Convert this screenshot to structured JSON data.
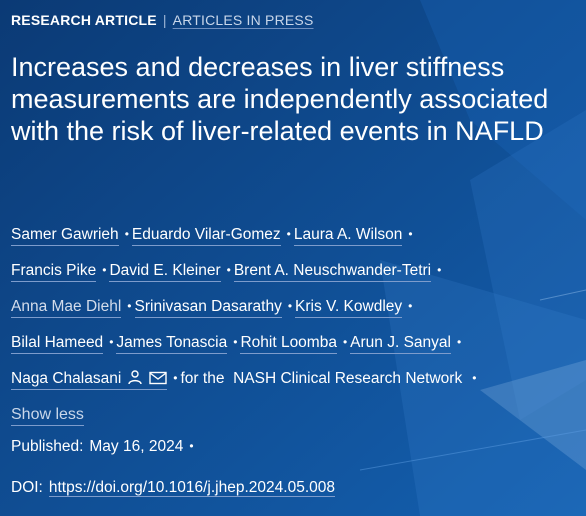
{
  "header": {
    "category": "RESEARCH ARTICLE",
    "separator": "|",
    "status": "ARTICLES IN PRESS"
  },
  "article": {
    "title": "Increases and decreases in liver stiffness measurements are independently associated with the risk of liver-related events in NAFLD"
  },
  "authors": {
    "rows": [
      [
        "Samer Gawrieh",
        "Eduardo Vilar-Gomez",
        "Laura A. Wilson"
      ],
      [
        "Francis Pike",
        "David E. Kleiner",
        "Brent A. Neuschwander-Tetri"
      ],
      [
        "Anna Mae Diehl",
        "Srinivasan Dasarathy",
        "Kris V. Kowdley"
      ],
      [
        "Bilal Hameed",
        "James Tonascia",
        "Rohit Loomba",
        "Arun J. Sanyal"
      ]
    ],
    "last_author": "Naga Chalasani",
    "group_prefix": "for the",
    "group_name": "NASH Clinical Research Network",
    "bullet": "•",
    "icons": [
      "person-icon",
      "envelope-icon"
    ]
  },
  "show_less_label": "Show less",
  "published": {
    "label": "Published:",
    "date": "May 16, 2024"
  },
  "doi": {
    "label": "DOI:",
    "url": "https://doi.org/10.1016/j.jhep.2024.05.008"
  },
  "colors": {
    "background": "#0f4d94",
    "text": "#ffffff",
    "link_underline": "#7d9ccc"
  }
}
